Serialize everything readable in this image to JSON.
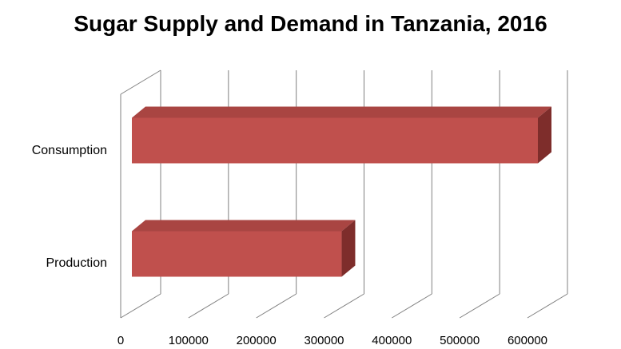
{
  "chart_data": {
    "type": "bar",
    "orientation": "horizontal",
    "style": "3d",
    "title": "Sugar Supply and Demand in Tanzania, 2016",
    "categories": [
      "Consumption",
      "Production"
    ],
    "values": [
      600000,
      310000
    ],
    "xlim": [
      0,
      600000
    ],
    "xticks": [
      "0",
      "100000",
      "200000",
      "300000",
      "400000",
      "500000",
      "600000"
    ],
    "grid": true,
    "legend": "none",
    "colors": {
      "bar_front": "#C0504D",
      "bar_top": "#A94542",
      "bar_side": "#7E2D2B",
      "grid": "#808080"
    }
  }
}
